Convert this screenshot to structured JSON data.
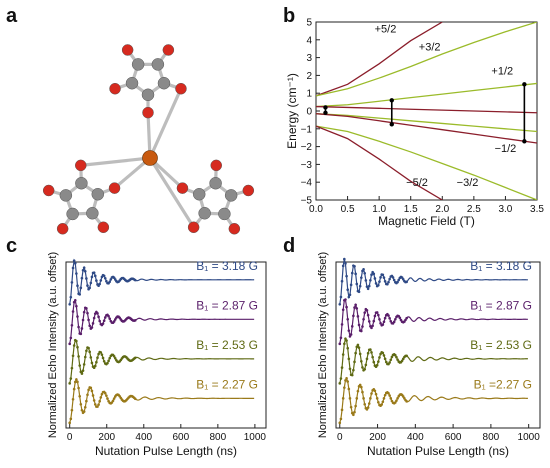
{
  "panels": {
    "a": "a",
    "b": "b",
    "c": "c",
    "d": "d"
  },
  "colors": {
    "red_line": "#8b1e2b",
    "green_line": "#9bbb2a",
    "atom_red": "#d62a1f",
    "atom_grey": "#8a8a8a",
    "atom_fe": "#c85a10",
    "trace_blue": "#2f4a86",
    "trace_purple": "#5a1f6a",
    "trace_olive": "#5f6a14",
    "trace_gold": "#9a7a1a"
  },
  "chart_data": [
    {
      "panel": "b",
      "type": "line",
      "xlabel": "Magnetic Field (T)",
      "ylabel": "Energy (cm⁻¹)",
      "xlim": [
        0,
        3.5
      ],
      "ylim": [
        -5,
        5
      ],
      "xticks": [
        "0.0",
        "0.5",
        "1.0",
        "1.5",
        "2.0",
        "2.5",
        "3.0",
        "3.5"
      ],
      "yticks": [
        "5",
        "4",
        "3",
        "2",
        "1",
        "0",
        "-1",
        "-2",
        "-3",
        "-4",
        "-5"
      ],
      "series": [
        {
          "name": "+5/2",
          "color": "#8b1e2b",
          "x": [
            0,
            0.5,
            1.0,
            1.5,
            2.0
          ],
          "y": [
            0.85,
            1.5,
            2.65,
            3.95,
            5.0
          ]
        },
        {
          "name": "+3/2",
          "color": "#9bbb2a",
          "x": [
            0,
            0.5,
            1.0,
            1.5,
            2.0,
            2.5,
            3.0,
            3.5
          ],
          "y": [
            0.85,
            1.25,
            1.85,
            2.5,
            3.2,
            3.85,
            4.45,
            5.0
          ]
        },
        {
          "name": "+1/2",
          "color": "#9bbb2a",
          "x": [
            0,
            0.5,
            1.0,
            1.5,
            2.0,
            2.5,
            3.0,
            3.5
          ],
          "y": [
            0.25,
            0.35,
            0.55,
            0.75,
            0.95,
            1.15,
            1.35,
            1.55
          ]
        },
        {
          "name": "",
          "color": "#8b1e2b",
          "x": [
            0,
            0.5,
            1.0,
            1.5,
            2.0,
            2.5,
            3.0,
            3.5
          ],
          "y": [
            0.25,
            0.2,
            0.15,
            0.1,
            0.05,
            0.0,
            -0.05,
            -0.1
          ]
        },
        {
          "name": "",
          "color": "#9bbb2a",
          "x": [
            0,
            0.5,
            1.0,
            1.5,
            2.0,
            2.5,
            3.0,
            3.5
          ],
          "y": [
            -0.15,
            -0.25,
            -0.4,
            -0.55,
            -0.7,
            -0.85,
            -1.0,
            -1.15
          ]
        },
        {
          "name": "-1/2",
          "color": "#8b1e2b",
          "x": [
            0,
            0.5,
            1.0,
            1.5,
            2.0,
            2.5,
            3.0,
            3.5
          ],
          "y": [
            -0.15,
            -0.3,
            -0.55,
            -0.8,
            -1.05,
            -1.3,
            -1.55,
            -1.8
          ]
        },
        {
          "name": "-3/2",
          "color": "#9bbb2a",
          "x": [
            0,
            0.5,
            1.0,
            1.5,
            2.0,
            2.5,
            3.0,
            3.5
          ],
          "y": [
            -0.85,
            -1.15,
            -1.7,
            -2.3,
            -2.95,
            -3.6,
            -4.3,
            -5.0
          ]
        },
        {
          "name": "-5/2",
          "color": "#8b1e2b",
          "x": [
            0,
            0.5,
            1.0,
            1.5,
            2.0
          ],
          "y": [
            -0.85,
            -1.55,
            -2.7,
            -3.95,
            -5.0
          ]
        }
      ],
      "transitions": [
        {
          "x": 0.15,
          "y1": 0.2,
          "y2": -0.1
        },
        {
          "x": 1.2,
          "y1": 0.6,
          "y2": -0.75
        },
        {
          "x": 3.3,
          "y1": 1.5,
          "y2": -1.7
        }
      ],
      "annotations": [
        {
          "text": "+5/2",
          "x": 1.1,
          "y": 4.4
        },
        {
          "text": "+3/2",
          "x": 1.8,
          "y": 3.4
        },
        {
          "text": "+1/2",
          "x": 2.95,
          "y": 2.05
        },
        {
          "text": "−1/2",
          "x": 3.0,
          "y": -2.3
        },
        {
          "text": "−5/2",
          "x": 1.6,
          "y": -4.2
        },
        {
          "text": "−3/2",
          "x": 2.4,
          "y": -4.2
        }
      ]
    },
    {
      "panel": "c",
      "type": "line",
      "xlabel": "Nutation Pulse Length (ns)",
      "ylabel": "Normalized Echo Intensity (a.u. offset)",
      "xlim": [
        -20,
        1060
      ],
      "xticks": [
        "0",
        "200",
        "400",
        "600",
        "800",
        "1000"
      ],
      "series": [
        {
          "name": "B₁ = 3.18 G",
          "color": "#2f4a86",
          "offset": 3,
          "period": 52,
          "decay": 110
        },
        {
          "name": "B₁ = 2.87 G",
          "color": "#5a1f6a",
          "offset": 2,
          "period": 58,
          "decay": 120
        },
        {
          "name": "B₁ = 2.53 G",
          "color": "#5f6a14",
          "offset": 1,
          "period": 66,
          "decay": 130
        },
        {
          "name": "B₁ = 2.27 G",
          "color": "#9a7a1a",
          "offset": 0,
          "period": 74,
          "decay": 140
        }
      ]
    },
    {
      "panel": "d",
      "type": "line",
      "xlabel": "Nutation Pulse Length (ns)",
      "ylabel": "Normalized Echo Intensity (a.u. offset)",
      "xlim": [
        -20,
        1060
      ],
      "xticks": [
        "0",
        "200",
        "400",
        "600",
        "800",
        "1000"
      ],
      "series": [
        {
          "name": "B₁ = 3.18 G",
          "color": "#2f4a86",
          "offset": 3,
          "period": 50,
          "decay": 150
        },
        {
          "name": "B₁ = 2.87 G",
          "color": "#5a1f6a",
          "offset": 2,
          "period": 56,
          "decay": 160
        },
        {
          "name": "B₁ = 2.53 G",
          "color": "#5f6a14",
          "offset": 1,
          "period": 64,
          "decay": 170
        },
        {
          "name": "B₁ =2.27 G",
          "color": "#9a7a1a",
          "offset": 0,
          "period": 72,
          "decay": 180
        }
      ]
    }
  ]
}
